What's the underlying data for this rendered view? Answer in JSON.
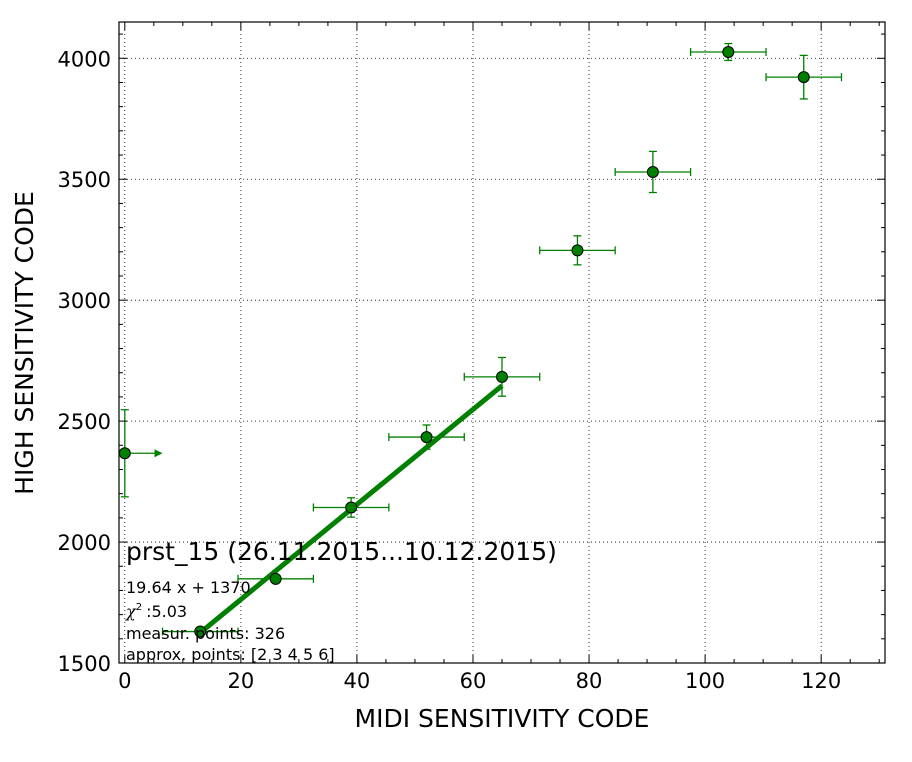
{
  "chart_data": {
    "type": "scatter",
    "xlabel": "MIDI SENSITIVITY CODE",
    "ylabel": "HIGH SENSITIVITY CODE",
    "xlim": [
      -1,
      131
    ],
    "ylim": [
      1500,
      4150
    ],
    "xticks": [
      "0",
      "20",
      "40",
      "60",
      "80",
      "100",
      "120"
    ],
    "xtick_values": [
      0,
      20,
      40,
      60,
      80,
      100,
      120
    ],
    "yticks": [
      "1500",
      "2000",
      "2500",
      "3000",
      "3500",
      "4000"
    ],
    "ytick_values": [
      1500,
      2000,
      2500,
      3000,
      3500,
      4000
    ],
    "grid": true,
    "color": "#008000",
    "points": [
      {
        "x": 0,
        "y": 2367,
        "xerr": 0,
        "yerr": 180,
        "x_arrow_to": 6.5
      },
      {
        "x": 13,
        "y": 1630,
        "xerr": 6.5,
        "yerr": 10
      },
      {
        "x": 26,
        "y": 1848,
        "xerr": 6.5,
        "yerr": 10
      },
      {
        "x": 39,
        "y": 2143,
        "xerr": 6.5,
        "yerr": 40
      },
      {
        "x": 52,
        "y": 2434,
        "xerr": 6.5,
        "yerr": 50
      },
      {
        "x": 65,
        "y": 2683,
        "xerr": 6.5,
        "yerr": 80
      },
      {
        "x": 78,
        "y": 3206,
        "xerr": 6.5,
        "yerr": 60
      },
      {
        "x": 91,
        "y": 3530,
        "xerr": 6.5,
        "yerr": 85
      },
      {
        "x": 104,
        "y": 4026,
        "xerr": 6.5,
        "yerr": 35
      },
      {
        "x": 117,
        "y": 3922,
        "xerr": 6.5,
        "yerr": 90
      }
    ],
    "fit_line": {
      "slope": 19.64,
      "intercept": 1370,
      "x_range": [
        13,
        65
      ]
    },
    "annotations": {
      "title": "prst_15 (26.11.2015...10.12.2015)",
      "equation": "19.64 x + 1370",
      "chi_symbol": "χ",
      "chi_sup": "2",
      "chi_value": ":5.03",
      "measur_points": "measur. points: 326",
      "approx_points": "approx. points: [2 3 4 5 6]"
    }
  }
}
